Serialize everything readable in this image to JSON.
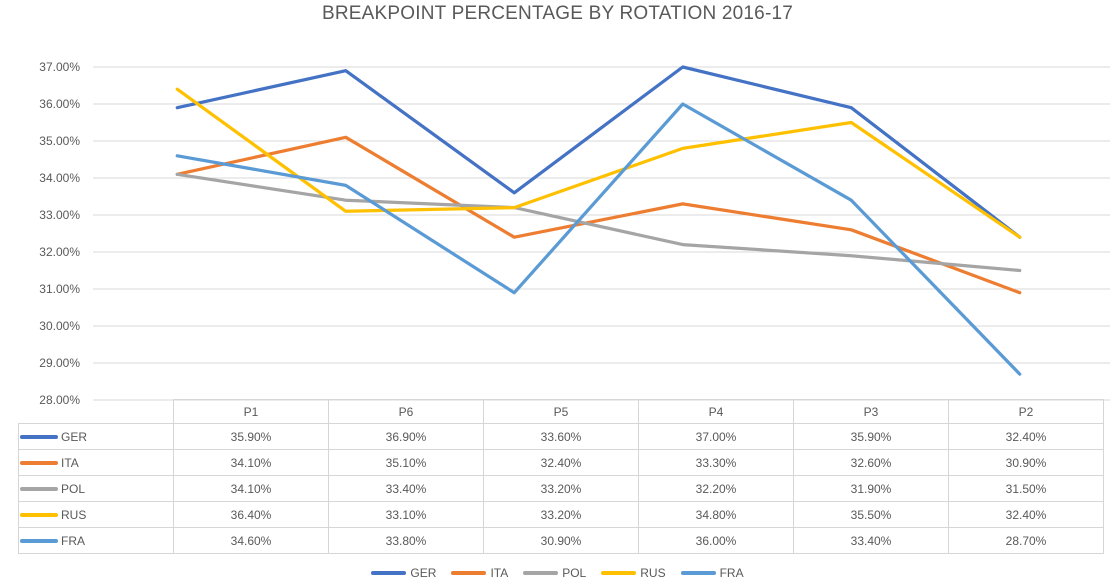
{
  "chart": {
    "title": "BREAKPOINT PERCENTAGE BY ROTATION 2016-17"
  },
  "chart_data": {
    "type": "line",
    "title": "BREAKPOINT PERCENTAGE BY ROTATION 2016-17",
    "xlabel": "",
    "ylabel": "",
    "categories": [
      "P1",
      "P6",
      "P5",
      "P4",
      "P3",
      "P2"
    ],
    "series": [
      {
        "name": "GER",
        "color": "#4472C4",
        "values": [
          35.9,
          36.9,
          33.6,
          37.0,
          35.9,
          32.4
        ]
      },
      {
        "name": "ITA",
        "color": "#ED7D31",
        "values": [
          34.1,
          35.1,
          32.4,
          33.3,
          32.6,
          30.9
        ]
      },
      {
        "name": "POL",
        "color": "#A5A5A5",
        "values": [
          34.1,
          33.4,
          33.2,
          32.2,
          31.9,
          31.5
        ]
      },
      {
        "name": "RUS",
        "color": "#FFC000",
        "values": [
          36.4,
          33.1,
          33.2,
          34.8,
          35.5,
          32.4
        ]
      },
      {
        "name": "FRA",
        "color": "#5B9BD5",
        "values": [
          34.6,
          33.8,
          30.9,
          36.0,
          33.4,
          28.7
        ]
      }
    ],
    "ylim": [
      28,
      37
    ],
    "ytick_step": 1,
    "ytick_format": "percent-2dp",
    "grid": true,
    "gridline_color": "#d9d9d9",
    "legend_position": "bottom",
    "data_table_shown": true,
    "text_color": "#595959"
  }
}
